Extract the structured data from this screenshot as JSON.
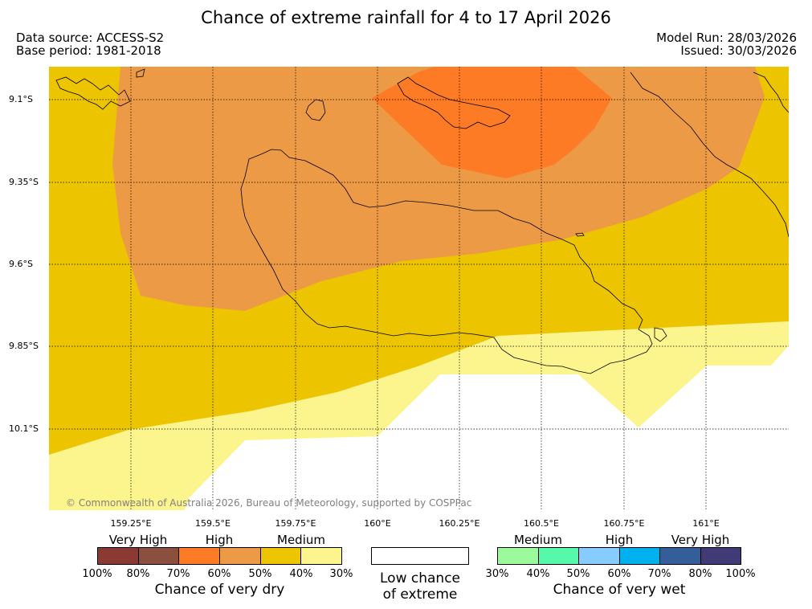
{
  "header": {
    "title": "Chance of extreme rainfall for 4 to 17 April 2026",
    "data_source": "Data source: ACCESS-S2",
    "base_period": "Base period: 1981-2018",
    "model_run": "Model Run: 28/03/2026",
    "issued": "Issued: 30/03/2026"
  },
  "map": {
    "lat_labels": [
      "9.1°S",
      "9.35°S",
      "9.6°S",
      "9.85°S",
      "10.1°S"
    ],
    "lon_labels": [
      "159.25°E",
      "159.5°E",
      "159.75°E",
      "160°E",
      "160.25°E",
      "160.5°E",
      "160.75°E",
      "161°E"
    ],
    "credit": "© Commonwealth of Australia 2026, Bureau of Meteorology, supported by COSPPac",
    "region_colors": {
      "dry_70_80": "#fd7b25",
      "dry_60_70": "#ed9a46",
      "dry_50_60": "#ecc500",
      "dry_40_50": "#fcf48c",
      "low_chance": "#ffffff"
    }
  },
  "legend": {
    "dry": {
      "categories": [
        "Very High",
        "High",
        "Medium"
      ],
      "colors": [
        "#8b3a33",
        "#8b4f3d",
        "#fd7b25",
        "#ed9a46",
        "#ecc500",
        "#fcf48c"
      ],
      "ticks": [
        "100%",
        "80%",
        "70%",
        "60%",
        "50%",
        "40%",
        "30%"
      ],
      "caption": "Chance of very dry"
    },
    "low": {
      "line1": "Low chance",
      "line2": "of extreme"
    },
    "wet": {
      "categories": [
        "Medium",
        "High",
        "Very High"
      ],
      "colors": [
        "#9cf99c",
        "#56f9a9",
        "#86ccff",
        "#00b1ef",
        "#335e99",
        "#403a76"
      ],
      "ticks": [
        "30%",
        "40%",
        "50%",
        "60%",
        "70%",
        "80%",
        "100%"
      ],
      "caption": "Chance of very wet"
    }
  }
}
